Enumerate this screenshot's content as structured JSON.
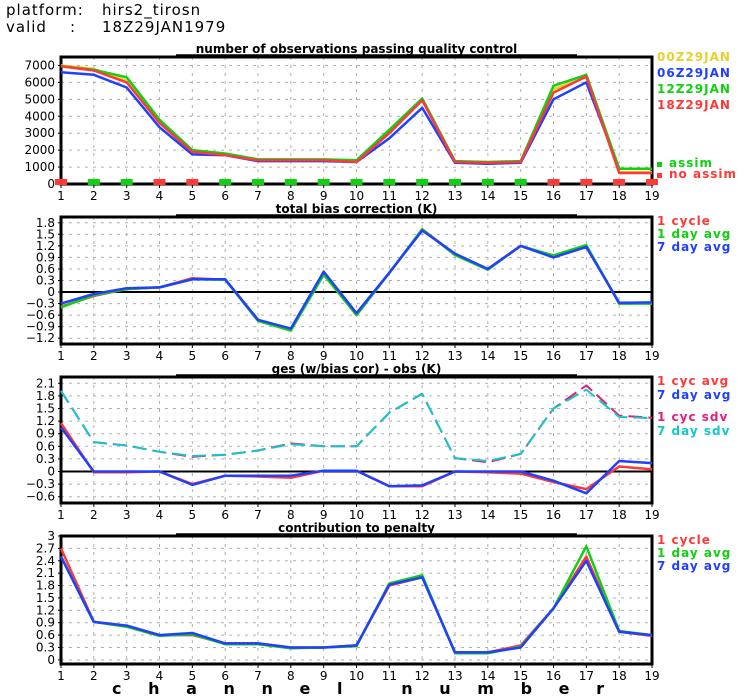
{
  "header": {
    "platform_label": "platform:",
    "platform_value": "hirs2_tirosn",
    "valid_label": "valid",
    "valid_sep": ":",
    "valid_value": "18Z29JAN1979"
  },
  "x_axis_label": "c h a n n e l   n u m b e r",
  "colors": {
    "c00": "#e8d030",
    "c06": "#2040ff",
    "c12": "#10d010",
    "c18": "#ff3838",
    "cyc_avg": "#ff3838",
    "cyc_sdv": "#e0207a",
    "day7_sdv": "#10c8c8",
    "assim": "#10d010",
    "no_assim": "#ff3838"
  },
  "chart_data": [
    {
      "type": "line",
      "title": "number of observations passing quality control",
      "x": [
        1,
        2,
        3,
        4,
        5,
        6,
        7,
        8,
        9,
        10,
        11,
        12,
        13,
        14,
        15,
        16,
        17,
        18,
        19
      ],
      "xlabel": "channel number",
      "ylabel": "",
      "ylim": [
        0,
        7500
      ],
      "yticks": [
        0,
        1000,
        2000,
        3000,
        4000,
        5000,
        6000,
        7000
      ],
      "ytick_labels": [
        "0",
        "1000",
        "2000",
        "3000",
        "4000",
        "5000",
        "6000",
        "7000"
      ],
      "grid": true,
      "legend_position": "right",
      "series": [
        {
          "name": "00Z29JAN",
          "color_key": "c00",
          "values": [
            7000,
            6800,
            6100,
            3700,
            1950,
            1750,
            1450,
            1450,
            1400,
            1350,
            3100,
            4950,
            1300,
            1250,
            1300,
            5600,
            6300,
            700,
            700
          ]
        },
        {
          "name": "06Z29JAN",
          "color_key": "c06",
          "values": [
            6600,
            6450,
            5700,
            3350,
            1750,
            1700,
            1350,
            1350,
            1350,
            1300,
            2700,
            4500,
            1250,
            1200,
            1250,
            5000,
            6000,
            900,
            900
          ]
        },
        {
          "name": "12Z29JAN",
          "color_key": "c12",
          "values": [
            6950,
            6750,
            6300,
            3800,
            2000,
            1800,
            1450,
            1450,
            1450,
            1400,
            3200,
            5050,
            1350,
            1300,
            1350,
            5800,
            6450,
            900,
            900
          ]
        },
        {
          "name": "18Z29JAN",
          "color_key": "c18",
          "values": [
            6950,
            6700,
            6000,
            3600,
            1900,
            1700,
            1400,
            1400,
            1400,
            1300,
            3000,
            4950,
            1300,
            1250,
            1300,
            5400,
            6350,
            650,
            650
          ]
        }
      ],
      "assim_markers": {
        "legend": [
          {
            "label": "assim",
            "color_key": "assim"
          },
          {
            "label": "no assim",
            "color_key": "no_assim"
          }
        ],
        "status": [
          "no assim",
          "assim",
          "assim",
          "no assim",
          "no assim",
          "assim",
          "assim",
          "assim",
          "assim",
          "assim",
          "assim",
          "assim",
          "assim",
          "assim",
          "assim",
          "no assim",
          "no assim",
          "no assim",
          "no assim"
        ]
      }
    },
    {
      "type": "line",
      "title": "total bias correction (K)",
      "x": [
        1,
        2,
        3,
        4,
        5,
        6,
        7,
        8,
        9,
        10,
        11,
        12,
        13,
        14,
        15,
        16,
        17,
        18,
        19
      ],
      "ylim": [
        -1.35,
        1.95
      ],
      "yticks": [
        -1.2,
        -0.9,
        -0.6,
        -0.3,
        0,
        0.3,
        0.6,
        0.9,
        1.2,
        1.5,
        1.8
      ],
      "ytick_labels": [
        "-1.2",
        "-0.9",
        "-0.6",
        "-0.3",
        "0",
        "0.3",
        "0.6",
        "0.9",
        "1.2",
        "1.5",
        "1.8"
      ],
      "grid": true,
      "zero_line": true,
      "legend_position": "right",
      "series": [
        {
          "name": "1 cycle",
          "color_key": "cyc_avg",
          "values": [
            -0.38,
            -0.1,
            0.08,
            0.12,
            0.36,
            0.32,
            -0.72,
            -1.0,
            0.48,
            -0.6,
            0.5,
            1.63,
            0.98,
            0.6,
            1.2,
            0.92,
            1.2,
            -0.3,
            -0.28
          ]
        },
        {
          "name": "1 day avg",
          "color_key": "c12",
          "values": [
            -0.4,
            -0.08,
            0.08,
            0.12,
            0.33,
            0.32,
            -0.75,
            -1.0,
            0.45,
            -0.6,
            0.5,
            1.63,
            0.96,
            0.58,
            1.2,
            0.95,
            1.22,
            -0.3,
            -0.3
          ]
        },
        {
          "name": "7 day avg",
          "color_key": "c06",
          "values": [
            -0.3,
            -0.05,
            0.1,
            0.12,
            0.33,
            0.33,
            -0.72,
            -0.95,
            0.53,
            -0.55,
            0.5,
            1.6,
            1.0,
            0.6,
            1.2,
            0.9,
            1.17,
            -0.28,
            -0.27
          ]
        }
      ]
    },
    {
      "type": "line",
      "title": "ges (w/bias cor) - obs (K)",
      "x": [
        1,
        2,
        3,
        4,
        5,
        6,
        7,
        8,
        9,
        10,
        11,
        12,
        13,
        14,
        15,
        16,
        17,
        18,
        19
      ],
      "ylim": [
        -0.75,
        2.25
      ],
      "yticks": [
        -0.6,
        -0.3,
        0,
        0.3,
        0.6,
        0.9,
        1.2,
        1.5,
        1.8,
        2.1
      ],
      "ytick_labels": [
        "-0.6",
        "-0.3",
        "0",
        "0.3",
        "0.6",
        "0.9",
        "1.2",
        "1.5",
        "1.8",
        "2.1"
      ],
      "grid": true,
      "zero_line": true,
      "legend_position": "right",
      "series": [
        {
          "name": "1 cyc avg",
          "color_key": "cyc_avg",
          "style": "solid",
          "values": [
            1.15,
            -0.02,
            -0.02,
            0.0,
            -0.3,
            -0.1,
            -0.12,
            -0.15,
            0.02,
            0.02,
            -0.35,
            -0.35,
            0.0,
            -0.02,
            -0.05,
            -0.25,
            -0.42,
            0.12,
            0.05
          ]
        },
        {
          "name": "7 day avg",
          "color_key": "c06",
          "style": "solid",
          "values": [
            1.05,
            0.0,
            0.0,
            0.0,
            -0.32,
            -0.1,
            -0.1,
            -0.1,
            0.02,
            0.02,
            -0.35,
            -0.33,
            0.0,
            0.0,
            0.0,
            -0.22,
            -0.52,
            0.25,
            0.2
          ]
        },
        {
          "name": "1 cyc sdv",
          "color_key": "cyc_sdv",
          "style": "dashed",
          "values": [
            1.92,
            0.7,
            0.62,
            0.47,
            0.35,
            0.4,
            0.5,
            0.67,
            0.6,
            0.6,
            1.4,
            1.85,
            0.32,
            0.22,
            0.42,
            1.5,
            2.05,
            1.33,
            1.28
          ]
        },
        {
          "name": "7 day sdv",
          "color_key": "day7_sdv",
          "style": "dashed",
          "values": [
            1.92,
            0.7,
            0.62,
            0.47,
            0.37,
            0.4,
            0.5,
            0.65,
            0.6,
            0.6,
            1.4,
            1.85,
            0.32,
            0.25,
            0.42,
            1.5,
            1.95,
            1.3,
            1.27
          ]
        }
      ]
    },
    {
      "type": "line",
      "title": "contribution to penalty",
      "x": [
        1,
        2,
        3,
        4,
        5,
        6,
        7,
        8,
        9,
        10,
        11,
        12,
        13,
        14,
        15,
        16,
        17,
        18,
        19
      ],
      "ylim": [
        -0.1,
        3.0
      ],
      "yticks": [
        0,
        0.3,
        0.6,
        0.9,
        1.2,
        1.5,
        1.8,
        2.1,
        2.4,
        2.7,
        3
      ],
      "ytick_labels": [
        "0",
        "0.3",
        "0.6",
        "0.9",
        "1.2",
        "1.5",
        "1.8",
        "2.1",
        "2.4",
        "2.7",
        "3"
      ],
      "grid": true,
      "legend_position": "right",
      "series": [
        {
          "name": "1 cycle",
          "color_key": "cyc_avg",
          "values": [
            2.7,
            0.92,
            0.82,
            0.6,
            0.6,
            0.4,
            0.4,
            0.3,
            0.3,
            0.35,
            1.8,
            2.0,
            0.18,
            0.18,
            0.35,
            1.25,
            2.5,
            0.68,
            0.58
          ]
        },
        {
          "name": "1 day avg",
          "color_key": "c12",
          "values": [
            2.5,
            0.92,
            0.8,
            0.58,
            0.62,
            0.38,
            0.38,
            0.28,
            0.3,
            0.33,
            1.85,
            2.05,
            0.16,
            0.16,
            0.32,
            1.25,
            2.75,
            0.7,
            0.6
          ]
        },
        {
          "name": "7 day avg",
          "color_key": "c06",
          "values": [
            2.5,
            0.92,
            0.83,
            0.6,
            0.65,
            0.4,
            0.4,
            0.3,
            0.3,
            0.35,
            1.82,
            2.0,
            0.18,
            0.18,
            0.3,
            1.25,
            2.4,
            0.68,
            0.6
          ]
        }
      ]
    }
  ]
}
